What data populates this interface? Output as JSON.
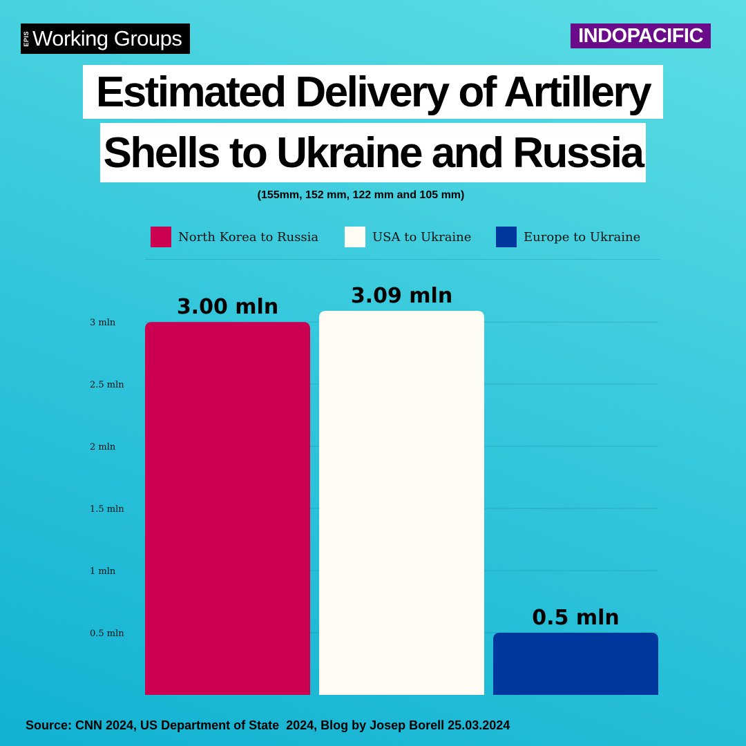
{
  "header": {
    "brand_small": "EPIS",
    "brand_big": "Working Groups",
    "region": "INDOPACIFIC"
  },
  "title": {
    "line1": "Estimated Delivery of Artillery",
    "line2": "Shells to Ukraine and Russia"
  },
  "subtitle": "(155mm, 152 mm, 122 mm and 105 mm)",
  "legend": [
    {
      "label": "North Korea to Russia",
      "color": "#cc0051"
    },
    {
      "label": "USA to Ukraine",
      "color": "#fffdf3"
    },
    {
      "label": "Europe to Ukraine",
      "color": "#00379c"
    }
  ],
  "chart_data": {
    "type": "bar",
    "categories": [
      "North Korea to Russia",
      "USA to Ukraine",
      "Europe to Ukraine"
    ],
    "values": [
      3.0,
      3.09,
      0.5
    ],
    "value_labels": [
      "3.00 mln",
      "3.09 mln",
      "0.5 mln"
    ],
    "colors": [
      "#cc0051",
      "#fffdf3",
      "#00379c"
    ],
    "yticks": [
      0.5,
      1,
      1.5,
      2,
      2.5,
      3
    ],
    "ytick_labels": [
      "0.5 mln",
      "1 mln",
      "1.5 mln",
      "2 mln",
      "2.5 mln",
      "3 mln"
    ],
    "ylim": [
      0,
      3.09
    ],
    "grid": true,
    "legend_position": "top"
  },
  "source": "Source: CNN 2024, US Department of State  2024, Blog by Josep Borell 25.03.2024"
}
